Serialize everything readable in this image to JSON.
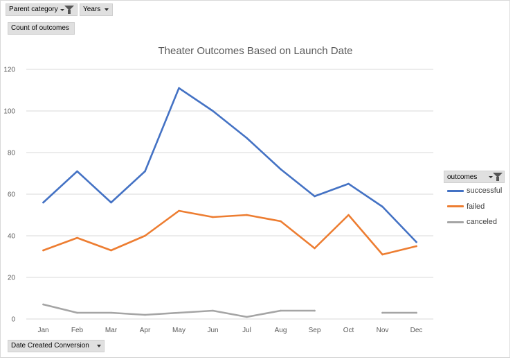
{
  "pivot": {
    "parent_category_label": "Parent category",
    "years_label": "Years",
    "value_field_label": "Count of outcomes",
    "axis_field_label": "Date Created Conversion",
    "legend_field_label": "outcomes"
  },
  "icons": {
    "filter": "filter-icon",
    "dropdown": "chevron-down-icon"
  },
  "colors": {
    "successful": "#4472c4",
    "failed": "#ed7d31",
    "canceled": "#a5a5a5",
    "gridline": "#d9d9d9",
    "tick_text": "#595959",
    "title_text": "#595959"
  },
  "chart_data": {
    "type": "line",
    "title": "Theater Outcomes Based on Launch Date",
    "xlabel": "",
    "ylabel": "",
    "categories": [
      "Jan",
      "Feb",
      "Mar",
      "Apr",
      "May",
      "Jun",
      "Jul",
      "Aug",
      "Sep",
      "Oct",
      "Nov",
      "Dec"
    ],
    "ylim": [
      0,
      120
    ],
    "yticks": [
      0,
      20,
      40,
      60,
      80,
      100,
      120
    ],
    "grid": true,
    "legend_position": "right",
    "series": [
      {
        "name": "successful",
        "values": [
          56,
          71,
          56,
          71,
          111,
          100,
          87,
          72,
          59,
          65,
          54,
          37
        ]
      },
      {
        "name": "failed",
        "values": [
          33,
          39,
          33,
          40,
          52,
          49,
          50,
          47,
          34,
          50,
          31,
          35
        ]
      },
      {
        "name": "canceled",
        "values": [
          7,
          3,
          3,
          2,
          3,
          4,
          1,
          4,
          4,
          null,
          3,
          3
        ]
      }
    ]
  }
}
